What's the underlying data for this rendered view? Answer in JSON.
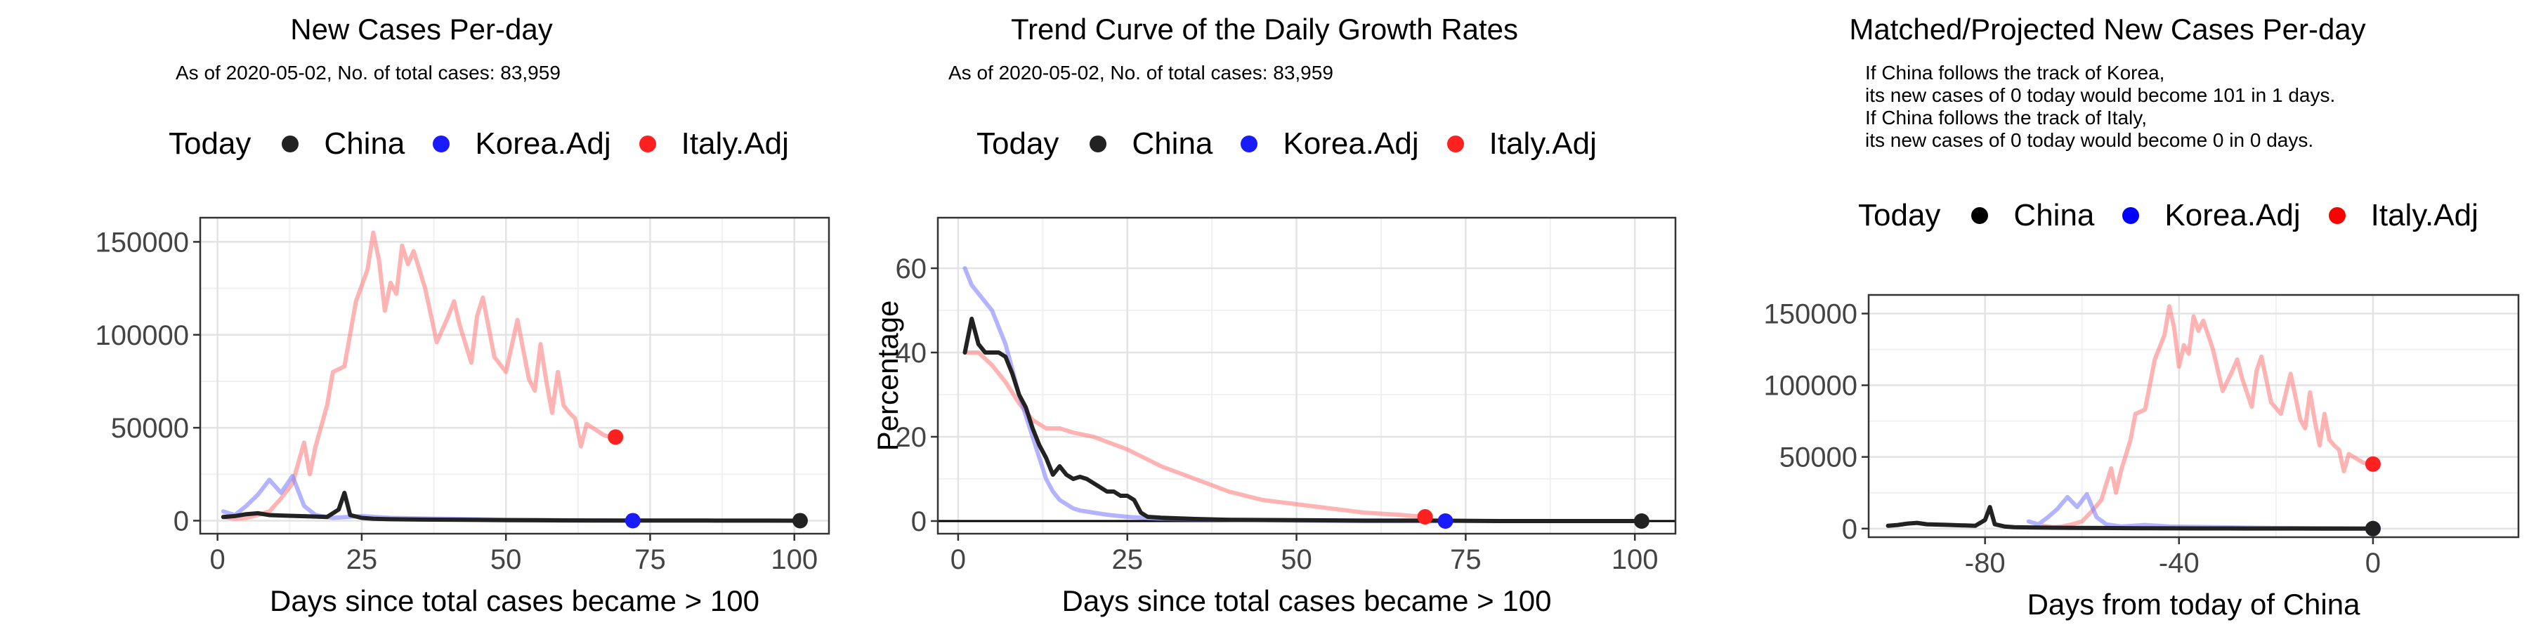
{
  "colors": {
    "China": "#000000",
    "Korea.Adj": "#0000ff",
    "Italy.Adj": "#ff0000"
  },
  "legend": {
    "title": "Today",
    "items": [
      "China",
      "Korea.Adj",
      "Italy.Adj"
    ]
  },
  "chart_data": [
    {
      "type": "line",
      "title": "New Cases Per-day",
      "subtitle": "As of 2020-05-02, No. of total cases: 83,959",
      "xlabel": "Days since total cases became > 100",
      "ylabel": "",
      "xlim": [
        -3,
        106
      ],
      "ylim": [
        -7000,
        163000
      ],
      "xticks": [
        0,
        25,
        50,
        75,
        100
      ],
      "yticks": [
        0,
        50000,
        100000,
        150000
      ],
      "grid": true,
      "legend_position": "top",
      "series": [
        {
          "name": "China",
          "x": [
            1,
            3,
            5,
            7,
            9,
            11,
            13,
            15,
            17,
            19,
            21,
            22,
            23,
            25,
            27,
            30,
            35,
            40,
            45,
            50,
            55,
            60,
            65,
            70,
            75,
            80,
            85,
            90,
            95,
            101
          ],
          "y": [
            2000,
            2500,
            3500,
            4000,
            3000,
            2800,
            2600,
            2400,
            2200,
            2000,
            6000,
            15000,
            3000,
            1500,
            1000,
            800,
            600,
            500,
            400,
            300,
            200,
            150,
            120,
            100,
            80,
            60,
            50,
            40,
            30,
            0
          ]
        },
        {
          "name": "Korea.Adj",
          "x": [
            1,
            3,
            5,
            7,
            9,
            11,
            13,
            15,
            17,
            20,
            25,
            30,
            40,
            50,
            60,
            65,
            72
          ],
          "y": [
            5000,
            3000,
            8000,
            14000,
            22000,
            15000,
            24000,
            8000,
            3000,
            1500,
            2500,
            1500,
            1000,
            500,
            300,
            200,
            0
          ]
        },
        {
          "name": "Italy.Adj",
          "x": [
            1,
            3,
            5,
            7,
            9,
            11,
            13,
            15,
            16,
            17,
            19,
            20,
            22,
            24,
            26,
            27,
            28,
            29,
            30,
            31,
            32,
            33,
            34,
            36,
            38,
            40,
            41,
            42,
            43,
            44,
            45,
            46,
            48,
            50,
            52,
            53,
            54,
            55,
            56,
            57,
            58,
            59,
            60,
            61,
            62,
            63,
            64,
            66,
            67,
            68,
            69
          ],
          "y": [
            2000,
            1000,
            1500,
            3000,
            5000,
            12000,
            20000,
            42000,
            25000,
            40000,
            62000,
            80000,
            83000,
            118000,
            135000,
            155000,
            140000,
            113000,
            128000,
            122000,
            148000,
            138000,
            145000,
            125000,
            96000,
            110000,
            118000,
            105000,
            95000,
            85000,
            110000,
            120000,
            88000,
            80000,
            108000,
            92000,
            76000,
            70000,
            95000,
            75000,
            58000,
            80000,
            62000,
            58000,
            55000,
            40000,
            52000,
            48000,
            46000,
            45000,
            45000
          ]
        }
      ]
    },
    {
      "type": "line",
      "title": "Trend Curve of the Daily Growth Rates",
      "subtitle": "As of 2020-05-02, No. of total cases: 83,959",
      "xlabel": "Days since total cases became > 100",
      "ylabel": "Percentage",
      "xlim": [
        -3,
        106
      ],
      "ylim": [
        -3,
        72
      ],
      "xticks": [
        0,
        25,
        50,
        75,
        100
      ],
      "yticks": [
        0,
        20,
        40,
        60
      ],
      "grid": true,
      "legend_position": "top",
      "series": [
        {
          "name": "China",
          "x": [
            1,
            2,
            3,
            4,
            5,
            6,
            7,
            8,
            9,
            10,
            11,
            12,
            13,
            14,
            15,
            16,
            17,
            18,
            19,
            20,
            21,
            22,
            23,
            24,
            25,
            26,
            27,
            28,
            30,
            35,
            40,
            50,
            60,
            70,
            80,
            90,
            101
          ],
          "y": [
            40,
            48,
            42,
            40,
            40,
            40,
            39,
            35,
            30,
            27,
            22,
            18,
            15,
            11,
            13,
            11,
            10,
            10.5,
            10,
            9,
            8,
            7,
            7,
            6,
            6,
            5,
            2,
            1,
            0.8,
            0.5,
            0.3,
            0.2,
            0.1,
            0.1,
            0,
            0,
            0
          ]
        },
        {
          "name": "Korea.Adj",
          "x": [
            1,
            2,
            3,
            4,
            5,
            6,
            7,
            8,
            9,
            10,
            11,
            12,
            13,
            14,
            15,
            16,
            17,
            18,
            20,
            22,
            25,
            30,
            40,
            50,
            60,
            72
          ],
          "y": [
            60,
            56,
            54,
            52,
            50,
            46,
            42,
            36,
            30,
            25,
            20,
            15,
            10,
            7,
            5,
            4,
            3,
            2.5,
            2,
            1.5,
            1,
            0.5,
            0.3,
            0.1,
            0,
            0
          ]
        },
        {
          "name": "Italy.Adj",
          "x": [
            1,
            3,
            5,
            7,
            9,
            11,
            13,
            15,
            17,
            20,
            25,
            30,
            35,
            40,
            45,
            50,
            55,
            60,
            65,
            69
          ],
          "y": [
            40,
            40,
            37,
            33,
            28,
            24,
            22,
            22,
            21,
            20,
            17,
            13,
            10,
            7,
            5,
            4,
            3,
            2,
            1.5,
            1
          ]
        }
      ]
    },
    {
      "type": "line",
      "title": "Matched/Projected New Cases Per-day",
      "subtitle": "If China follows the track of Korea,\nits new cases of 0 today would become 101 in 1 days.\nIf China follows the track of Italy,\nits new cases of 0 today would become 0 in 0 days.",
      "xlabel": "Days from today of China",
      "ylabel": "",
      "xlim": [
        -104,
        30
      ],
      "ylim": [
        -6000,
        163000
      ],
      "xticks": [
        -80,
        -40,
        0
      ],
      "yticks": [
        0,
        50000,
        100000,
        150000
      ],
      "grid": true,
      "legend_position": "top",
      "series": [
        {
          "name": "China",
          "x": [
            -100,
            -98,
            -96,
            -94,
            -92,
            -90,
            -88,
            -86,
            -84,
            -82,
            -80,
            -79,
            -78,
            -76,
            -74,
            -71,
            -66,
            -61,
            -56,
            -51,
            -46,
            -41,
            -36,
            -31,
            -26,
            -21,
            -16,
            -11,
            -6,
            0
          ],
          "y": [
            2000,
            2500,
            3500,
            4000,
            3000,
            2800,
            2600,
            2400,
            2200,
            2000,
            6000,
            15000,
            3000,
            1500,
            1000,
            800,
            600,
            500,
            400,
            300,
            200,
            150,
            120,
            100,
            80,
            60,
            50,
            40,
            30,
            0
          ]
        },
        {
          "name": "Korea.Adj",
          "x": [
            -71,
            -69,
            -67,
            -65,
            -63,
            -61,
            -59,
            -57,
            -55,
            -52,
            -47,
            -42,
            -32,
            -22,
            -12,
            -7,
            0
          ],
          "y": [
            5000,
            3000,
            8000,
            14000,
            22000,
            15000,
            24000,
            8000,
            3000,
            1500,
            2500,
            1500,
            1000,
            500,
            300,
            200,
            0
          ]
        },
        {
          "name": "Italy.Adj",
          "x": [
            -68,
            -66,
            -64,
            -62,
            -60,
            -58,
            -56,
            -54,
            -53,
            -52,
            -50,
            -49,
            -47,
            -45,
            -43,
            -42,
            -41,
            -40,
            -39,
            -38,
            -37,
            -36,
            -35,
            -33,
            -31,
            -29,
            -28,
            -27,
            -26,
            -25,
            -24,
            -23,
            -21,
            -19,
            -17,
            -16,
            -15,
            -14,
            -13,
            -12,
            -11,
            -10,
            -9,
            -8,
            -7,
            -6,
            -5,
            -3,
            -2,
            -1,
            0
          ],
          "y": [
            2000,
            1000,
            1500,
            3000,
            5000,
            12000,
            20000,
            42000,
            25000,
            40000,
            62000,
            80000,
            83000,
            118000,
            135000,
            155000,
            140000,
            113000,
            128000,
            122000,
            148000,
            138000,
            145000,
            125000,
            96000,
            110000,
            118000,
            105000,
            95000,
            85000,
            110000,
            120000,
            88000,
            80000,
            108000,
            92000,
            76000,
            70000,
            95000,
            75000,
            58000,
            80000,
            62000,
            58000,
            55000,
            40000,
            52000,
            48000,
            46000,
            45000,
            45000
          ]
        }
      ]
    }
  ]
}
